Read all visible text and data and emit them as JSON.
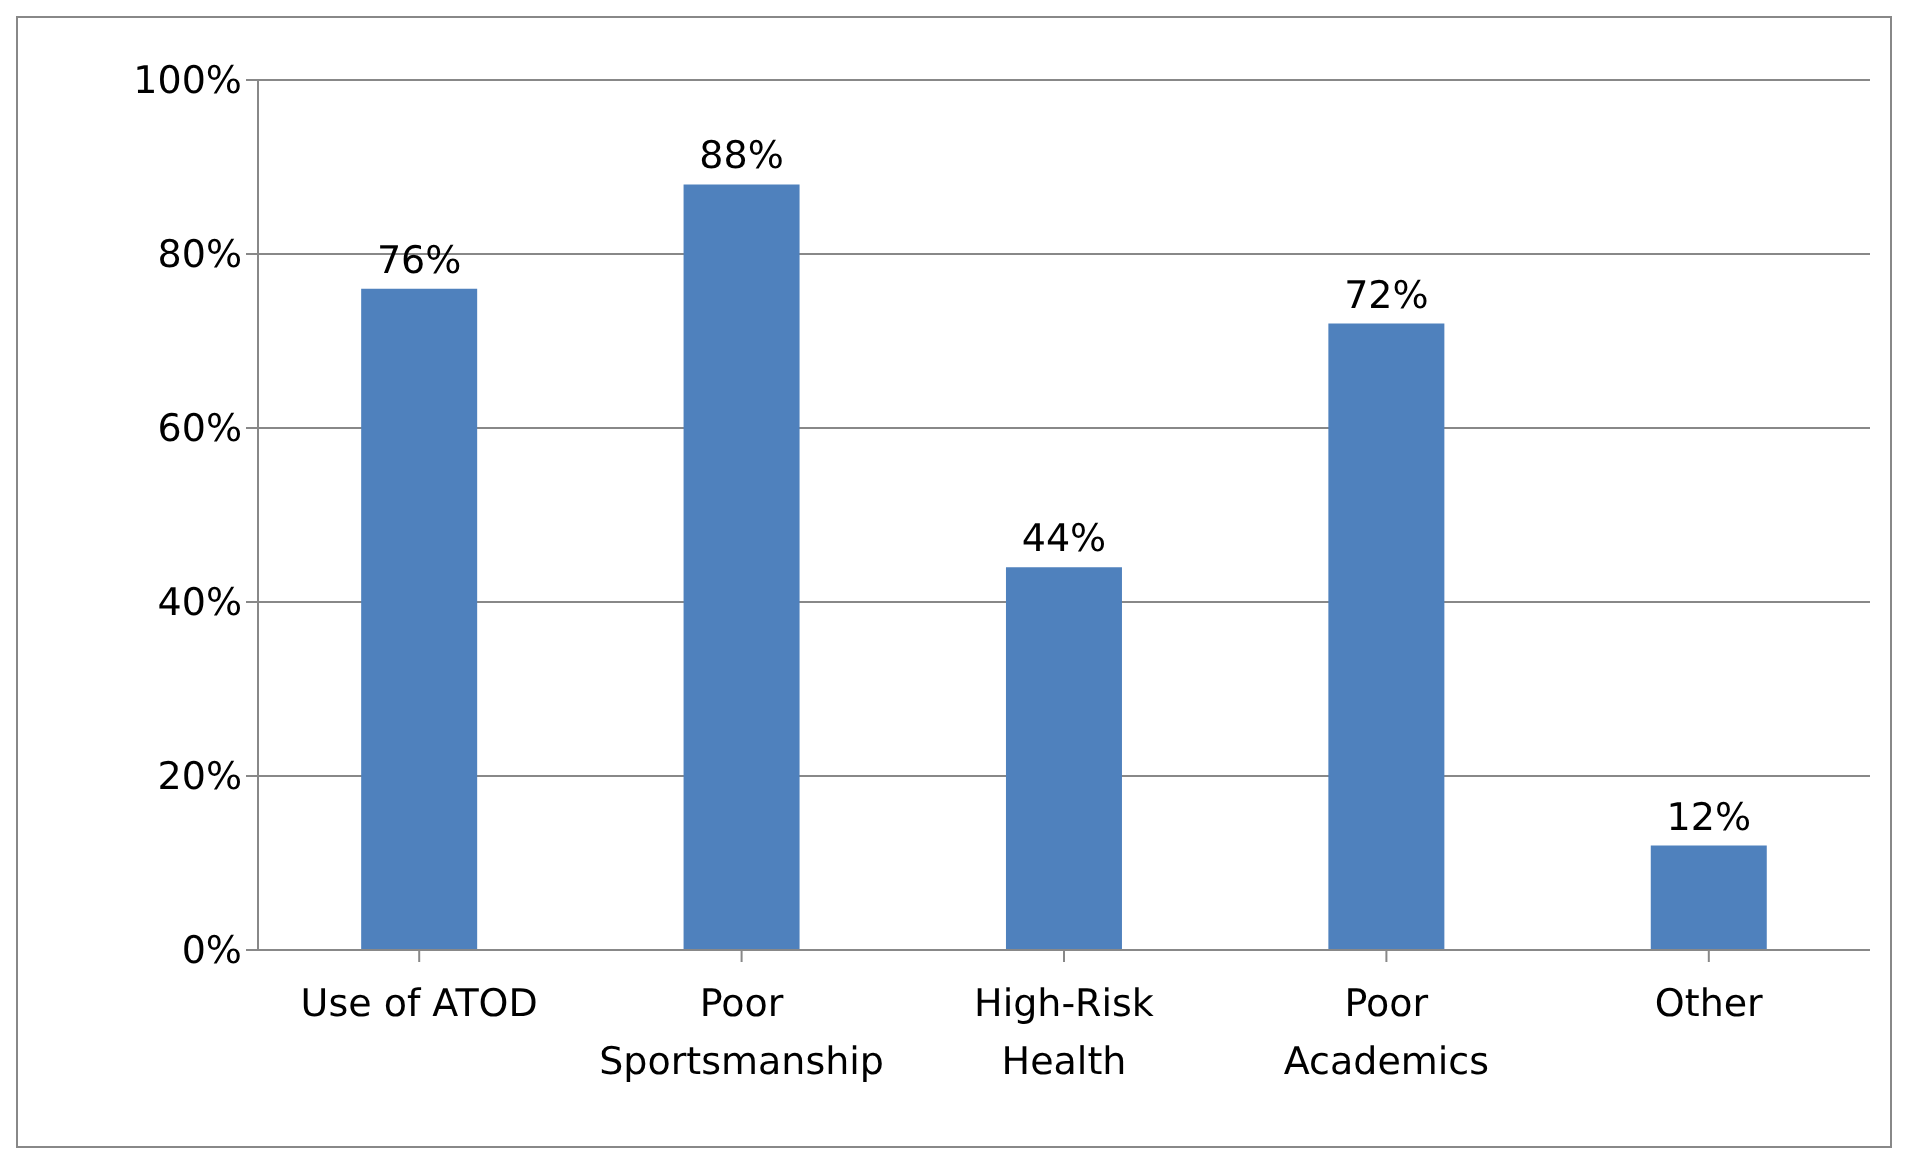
{
  "chart_data": {
    "type": "bar",
    "categories": [
      "Use of ATOD",
      "Poor Sportsmanship",
      "High-Risk Health",
      "Poor Academics",
      "Other"
    ],
    "values": [
      76,
      88,
      44,
      72,
      12
    ],
    "value_labels": [
      "76%",
      "88%",
      "44%",
      "72%",
      "12%"
    ],
    "color": "#4f81bd",
    "ylim": [
      0,
      100
    ],
    "yticks": [
      {
        "value": 0,
        "label": "0%"
      },
      {
        "value": 20,
        "label": "20%"
      },
      {
        "value": 40,
        "label": "40%"
      },
      {
        "value": 60,
        "label": "60%"
      },
      {
        "value": 80,
        "label": "80%"
      },
      {
        "value": 100,
        "label": "100%"
      }
    ],
    "grid": "y"
  }
}
